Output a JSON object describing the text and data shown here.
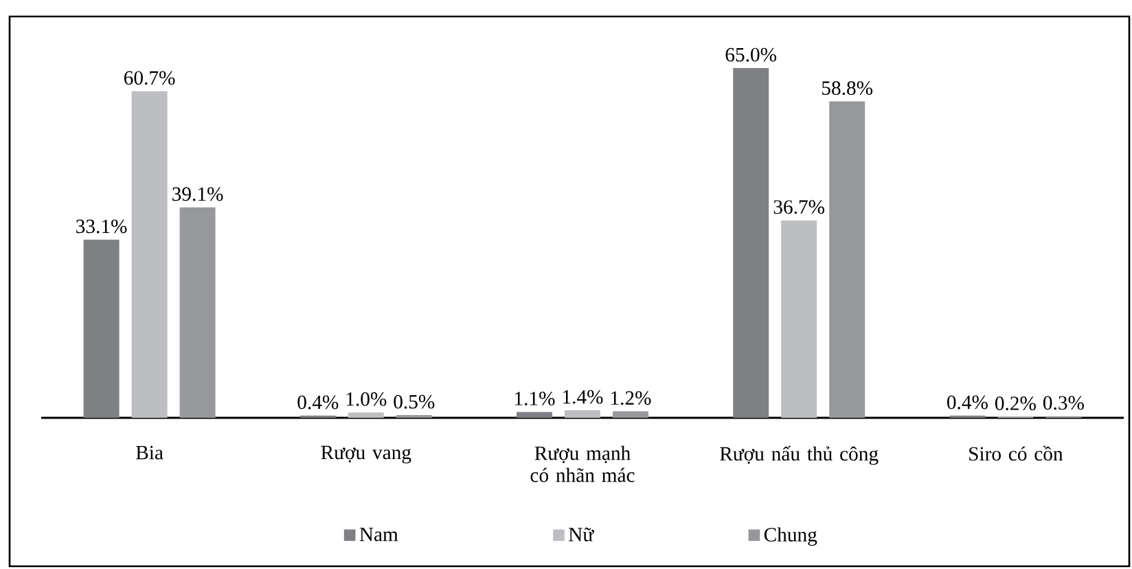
{
  "chart_data": {
    "type": "bar",
    "categories": [
      "Bia",
      "Rượu vang",
      "Rượu mạnh có nhãn mác",
      "Rượu nấu thủ công",
      "Siro có cồn"
    ],
    "series": [
      {
        "name": "Nam",
        "color": "#7f8084",
        "values": [
          33.1,
          0.4,
          1.1,
          65.0,
          0.4
        ],
        "value_labels": [
          "33.1%",
          "0.4%",
          "1.1%",
          "65.0%",
          "0.4%"
        ]
      },
      {
        "name": "Nữ",
        "color": "#bdbec2",
        "values": [
          60.7,
          1.0,
          1.4,
          36.7,
          0.2
        ],
        "value_labels": [
          "60.7%",
          "1.0%",
          "1.4%",
          "36.7%",
          "0.2%"
        ]
      },
      {
        "name": "Chung",
        "color": "#97989c",
        "values": [
          39.1,
          0.5,
          1.2,
          58.8,
          0.3
        ],
        "value_labels": [
          "39.1%",
          "0.5%",
          "1.2%",
          "58.8%",
          "0.3%"
        ]
      }
    ],
    "legend": "bottom",
    "grid": false
  }
}
